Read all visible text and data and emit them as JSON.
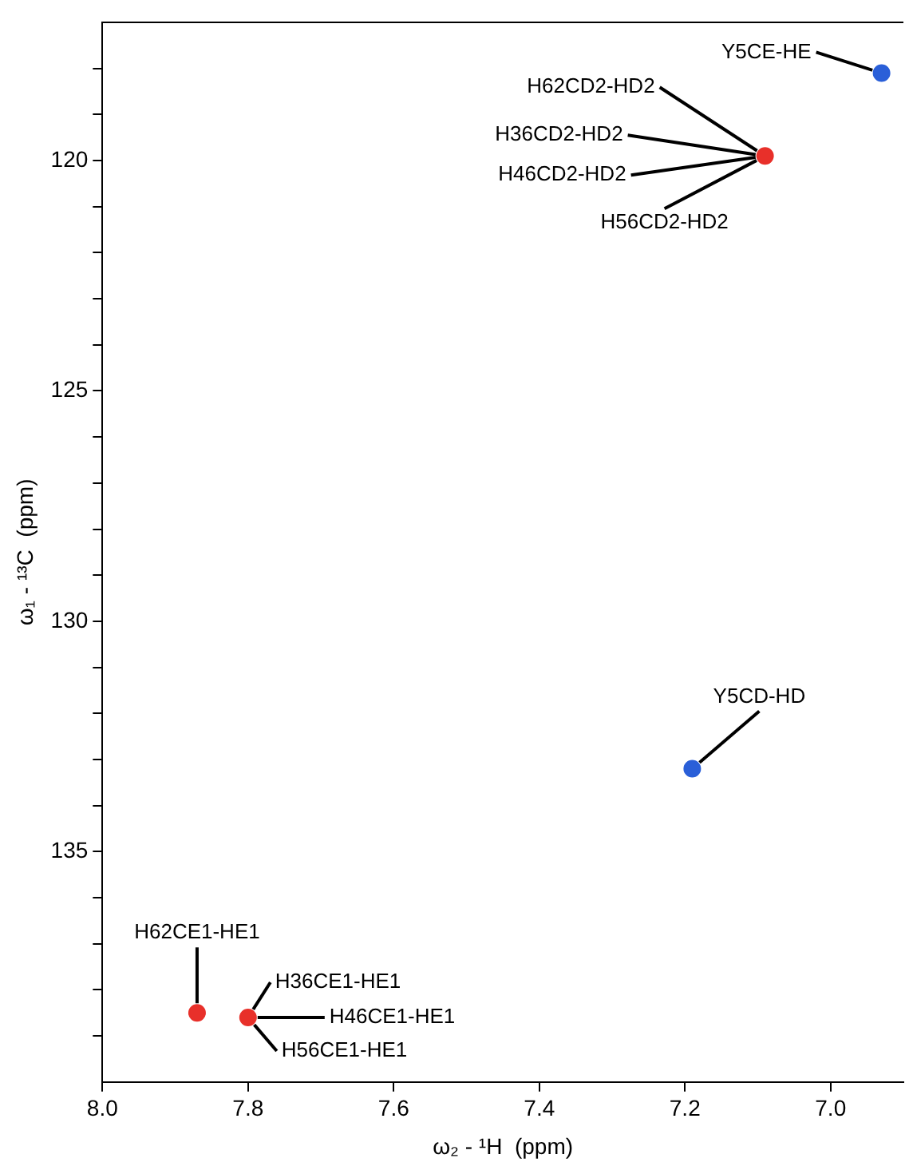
{
  "chart_data": {
    "type": "scatter",
    "xlabel": "ω₂ - ¹H  (ppm)",
    "ylabel": "ω₁ - ¹³C  (ppm)",
    "x": [
      7.87,
      7.8,
      7.09,
      6.93,
      7.19
    ],
    "series": [
      {
        "values": [
          138.5,
          138.6,
          119.9,
          118.1,
          133.2
        ],
        "colors": [
          "#e8302a",
          "#e8302a",
          "#e8302a",
          "#2a5fd8",
          "#2a5fd8"
        ]
      }
    ],
    "xlim": [
      8.0,
      6.9
    ],
    "xticks": [
      {
        "value": 8,
        "label": "8.0"
      },
      7.8,
      7.6,
      7.4,
      7.2,
      {
        "value": 7,
        "label": "7.0"
      }
    ],
    "ylim": [
      140,
      117
    ],
    "yticks": [
      {
        "value": 118,
        "label": null
      },
      {
        "value": 119,
        "label": null
      },
      120,
      {
        "value": 121,
        "label": null
      },
      {
        "value": 122,
        "label": null
      },
      {
        "value": 123,
        "label": null
      },
      {
        "value": 124,
        "label": null
      },
      125,
      {
        "value": 126,
        "label": null
      },
      {
        "value": 127,
        "label": null
      },
      {
        "value": 128,
        "label": null
      },
      {
        "value": 129,
        "label": null
      },
      130,
      {
        "value": 131,
        "label": null
      },
      {
        "value": 132,
        "label": null
      },
      {
        "value": 133,
        "label": null
      },
      {
        "value": 134,
        "label": null
      },
      135,
      {
        "value": 136,
        "label": null
      },
      {
        "value": 137,
        "label": null
      },
      {
        "value": 138,
        "label": null
      },
      {
        "value": 139,
        "label": null
      }
    ],
    "annotations": [
      {
        "text": "H62CE1-HE1",
        "x": 7.87,
        "y": 138.5
      },
      {
        "text": "H36CE1-HE1",
        "x": 7.8,
        "y": 138.6
      },
      {
        "text": "H46CE1-HE1",
        "x": 7.8,
        "y": 138.6
      },
      {
        "text": "H56CE1-HE1",
        "x": 7.8,
        "y": 138.6
      },
      {
        "text": "H62CD2-HD2",
        "x": 7.09,
        "y": 119.9
      },
      {
        "text": "H36CD2-HD2",
        "x": 7.09,
        "y": 119.9
      },
      {
        "text": "H46CD2-HD2",
        "x": 7.09,
        "y": 119.9
      },
      {
        "text": "H56CD2-HD2",
        "x": 7.09,
        "y": 119.9
      },
      {
        "text": "Y5CE-HE",
        "x": 6.93,
        "y": 118.1
      },
      {
        "text": "Y5CD-HD",
        "x": 7.19,
        "y": 133.2
      }
    ],
    "grid": false,
    "legend": false,
    "marker": "circle"
  }
}
